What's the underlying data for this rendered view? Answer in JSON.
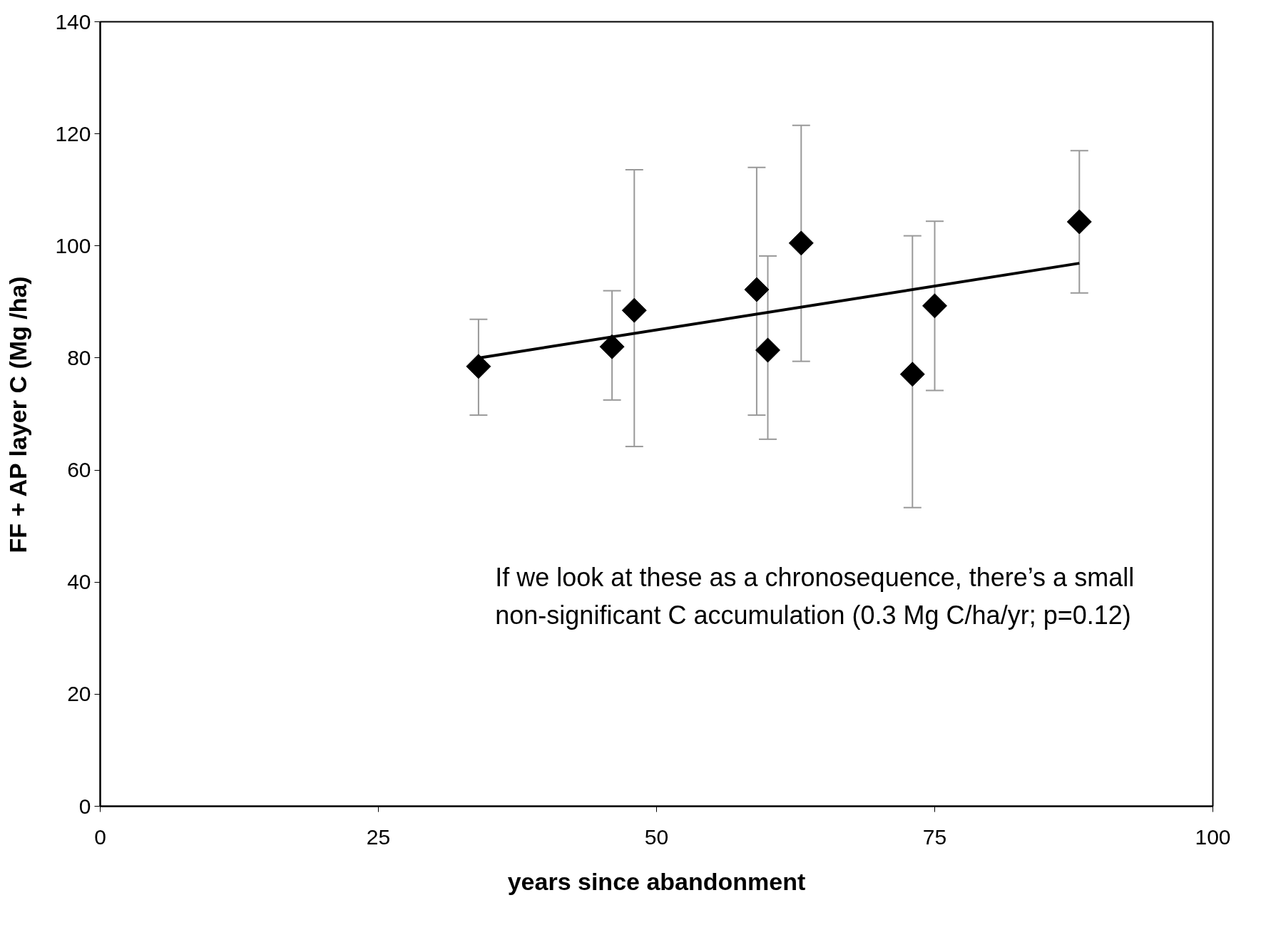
{
  "chart_data": {
    "type": "scatter",
    "xlabel": "years since abandonment",
    "ylabel": "FF + AP layer C (Mg /ha)",
    "xlim": [
      0,
      100
    ],
    "xticks": [
      0,
      25,
      50,
      75,
      100
    ],
    "ylim": [
      0,
      140
    ],
    "yticks": [
      0,
      20,
      40,
      60,
      80,
      100,
      120,
      140
    ],
    "grid": false,
    "marker": "diamond",
    "annotations": [
      "If we look at these as a chronosequence, there’s a small\nnon-significant C accumulation (0.3 Mg C/ha/yr; p=0.12)"
    ],
    "series": [
      {
        "color": "#000000",
        "x": [
          34,
          46,
          48,
          59,
          60,
          63,
          73,
          75,
          88
        ],
        "values": [
          78.5,
          82.0,
          88.5,
          92.2,
          81.4,
          100.5,
          77.1,
          89.3,
          104.3
        ],
        "errors": [
          [
            69.8,
            86.9
          ],
          [
            72.5,
            92.0
          ],
          [
            64.2,
            113.6
          ],
          [
            69.8,
            114.0
          ],
          [
            65.5,
            98.2
          ],
          [
            79.4,
            121.5
          ],
          [
            53.3,
            101.8
          ],
          [
            74.2,
            104.4
          ],
          [
            91.6,
            117.0
          ]
        ]
      },
      {
        "type": "line",
        "color": "#000000",
        "x": [
          34,
          88
        ],
        "values": [
          80.0,
          96.9
        ],
        "line_style": "solid",
        "marker": "none"
      }
    ]
  }
}
